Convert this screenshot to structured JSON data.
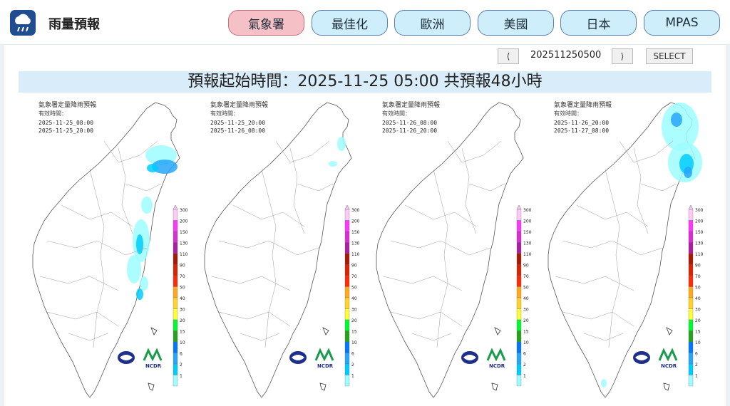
{
  "header": {
    "app_title": "雨量預報",
    "tabs": [
      {
        "label": "氣象署",
        "active": true
      },
      {
        "label": "最佳化",
        "active": false
      },
      {
        "label": "歐洲",
        "active": false
      },
      {
        "label": "美國",
        "active": false
      },
      {
        "label": "日本",
        "active": false
      },
      {
        "label": "MPAS",
        "active": false
      }
    ]
  },
  "toolbar": {
    "prev": "⟨",
    "date": "202511250500",
    "next": "⟩",
    "select": "SELECT"
  },
  "banner": "預報起始時間：2025-11-25 05:00  共預報48小時",
  "colors": {
    "accent": "#1f4d8f",
    "tab_fill": "#cdeefa",
    "tab_active_fill": "#f6c1c6",
    "banner_bg": "#d9ecf9"
  },
  "panels": [
    {
      "title": "氣象署定量降雨預報",
      "subtitle": "有效時間：",
      "start": "2025-11-25_08:00",
      "end": "2025-11-25_20:00"
    },
    {
      "title": "氣象署定量降雨預報",
      "subtitle": "有效時間：",
      "start": "2025-11-25_20:00",
      "end": "2025-11-26_08:00"
    },
    {
      "title": "氣象署定量降雨預報",
      "subtitle": "有效時間：",
      "start": "2025-11-26_08:00",
      "end": "2025-11-26_20:00"
    },
    {
      "title": "氣象署定量降雨預報",
      "subtitle": "有效時間：",
      "start": "2025-11-26_20:00",
      "end": "2025-11-27_08:00"
    }
  ],
  "scale_values": [
    "300",
    "200",
    "150",
    "130",
    "110",
    "90",
    "70",
    "50",
    "40",
    "30",
    "20",
    "15",
    "10",
    "6",
    "2",
    "1"
  ],
  "scale_colors": [
    "#fdcaf7",
    "#fe38fb",
    "#db2dd2",
    "#ab1fa2",
    "#aa1800",
    "#da2300",
    "#ff2b06",
    "#ffa81d",
    "#ffd328",
    "#fffd38",
    "#00fb30",
    "#26a31b",
    "#0177fd",
    "#27a6fa",
    "#00cdfc",
    "#9efdff"
  ],
  "logos": {
    "ncdr": "NCDR"
  }
}
